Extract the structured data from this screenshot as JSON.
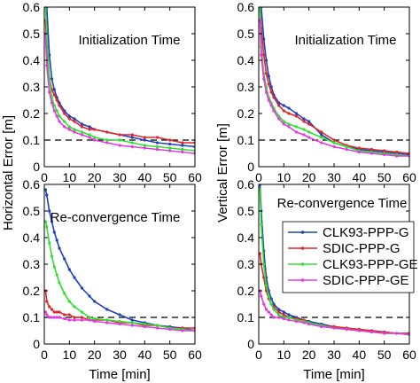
{
  "chart_data": [
    {
      "type": "line",
      "xlabel": "",
      "ylabel": "Horizontal Error [m]",
      "annotation": "Initialization Time",
      "xlim": [
        0,
        60
      ],
      "ylim": [
        0,
        0.6
      ],
      "xticks": [
        "0",
        "10",
        "20",
        "30",
        "40",
        "50",
        "60"
      ],
      "yticks": [
        "0",
        "0.1",
        "0.2",
        "0.3",
        "0.4",
        "0.5",
        "0.6"
      ],
      "reference_line": 0.1,
      "x": [
        0.5,
        1,
        2,
        3,
        4,
        5,
        6,
        8,
        10,
        12,
        15,
        18,
        20,
        25,
        30,
        35,
        40,
        45,
        50,
        55,
        60
      ],
      "series": [
        {
          "name": "CLK93-PPP-G",
          "values": [
            0.6,
            0.6,
            0.42,
            0.33,
            0.29,
            0.26,
            0.24,
            0.21,
            0.19,
            0.18,
            0.16,
            0.15,
            0.14,
            0.13,
            0.12,
            0.11,
            0.1,
            0.09,
            0.085,
            0.08,
            0.075
          ]
        },
        {
          "name": "SDIC-PPP-G",
          "values": [
            0.55,
            0.45,
            0.33,
            0.29,
            0.27,
            0.25,
            0.23,
            0.2,
            0.18,
            0.17,
            0.15,
            0.14,
            0.14,
            0.13,
            0.12,
            0.12,
            0.11,
            0.11,
            0.1,
            0.09,
            0.09
          ]
        },
        {
          "name": "CLK93-PPP-GE",
          "values": [
            0.6,
            0.5,
            0.33,
            0.26,
            0.23,
            0.21,
            0.19,
            0.17,
            0.15,
            0.14,
            0.13,
            0.12,
            0.11,
            0.1,
            0.1,
            0.09,
            0.08,
            0.075,
            0.07,
            0.065,
            0.06
          ]
        },
        {
          "name": "SDIC-PPP-GE",
          "values": [
            0.5,
            0.38,
            0.28,
            0.24,
            0.21,
            0.19,
            0.17,
            0.15,
            0.14,
            0.13,
            0.12,
            0.11,
            0.1,
            0.09,
            0.08,
            0.075,
            0.07,
            0.065,
            0.06,
            0.055,
            0.05
          ]
        }
      ]
    },
    {
      "type": "line",
      "xlabel": "",
      "ylabel": "Vertical Error [m]",
      "annotation": "Initialization Time",
      "xlim": [
        0,
        60
      ],
      "ylim": [
        0,
        0.6
      ],
      "xticks": [
        "0",
        "10",
        "20",
        "30",
        "40",
        "50",
        "60"
      ],
      "yticks": [
        "0",
        "0.1",
        "0.2",
        "0.3",
        "0.4",
        "0.5",
        "0.6"
      ],
      "reference_line": 0.1,
      "x": [
        0.5,
        1,
        2,
        3,
        4,
        5,
        6,
        8,
        10,
        12,
        15,
        18,
        20,
        25,
        30,
        35,
        40,
        45,
        50,
        55,
        60
      ],
      "series": [
        {
          "name": "CLK93-PPP-G",
          "values": [
            0.6,
            0.6,
            0.48,
            0.4,
            0.34,
            0.3,
            0.27,
            0.24,
            0.23,
            0.22,
            0.2,
            0.18,
            0.17,
            0.12,
            0.09,
            0.075,
            0.065,
            0.06,
            0.055,
            0.05,
            0.045
          ]
        },
        {
          "name": "SDIC-PPP-G",
          "values": [
            0.6,
            0.52,
            0.42,
            0.35,
            0.31,
            0.28,
            0.26,
            0.23,
            0.21,
            0.2,
            0.19,
            0.17,
            0.16,
            0.13,
            0.1,
            0.08,
            0.07,
            0.065,
            0.06,
            0.055,
            0.05
          ]
        },
        {
          "name": "CLK93-PPP-GE",
          "values": [
            0.6,
            0.45,
            0.35,
            0.3,
            0.26,
            0.24,
            0.22,
            0.19,
            0.17,
            0.16,
            0.15,
            0.14,
            0.13,
            0.11,
            0.09,
            0.075,
            0.06,
            0.055,
            0.05,
            0.045,
            0.04
          ]
        },
        {
          "name": "SDIC-PPP-GE",
          "values": [
            0.55,
            0.42,
            0.33,
            0.28,
            0.25,
            0.23,
            0.21,
            0.18,
            0.16,
            0.15,
            0.13,
            0.12,
            0.11,
            0.09,
            0.075,
            0.065,
            0.055,
            0.05,
            0.045,
            0.04,
            0.04
          ]
        }
      ]
    },
    {
      "type": "line",
      "xlabel": "Time [min]",
      "ylabel": "Horizontal Error [m]",
      "annotation": "Re-convergence Time",
      "xlim": [
        0,
        60
      ],
      "ylim": [
        0,
        0.6
      ],
      "xticks": [
        "0",
        "10",
        "20",
        "30",
        "40",
        "50",
        "60"
      ],
      "yticks": [
        "0",
        "0.1",
        "0.2",
        "0.3",
        "0.4",
        "0.5",
        "0.6"
      ],
      "reference_line": 0.1,
      "x": [
        0.5,
        1,
        2,
        3,
        4,
        5,
        6,
        8,
        10,
        12,
        15,
        18,
        20,
        25,
        30,
        35,
        40,
        45,
        50,
        55,
        60
      ],
      "series": [
        {
          "name": "CLK93-PPP-G",
          "values": [
            0.58,
            0.56,
            0.5,
            0.46,
            0.42,
            0.39,
            0.36,
            0.32,
            0.28,
            0.25,
            0.21,
            0.18,
            0.16,
            0.13,
            0.11,
            0.09,
            0.08,
            0.07,
            0.065,
            0.06,
            0.05
          ]
        },
        {
          "name": "SDIC-PPP-G",
          "values": [
            0.2,
            0.16,
            0.14,
            0.13,
            0.12,
            0.12,
            0.12,
            0.11,
            0.11,
            0.1,
            0.1,
            0.09,
            0.09,
            0.09,
            0.08,
            0.08,
            0.07,
            0.07,
            0.06,
            0.06,
            0.06
          ]
        },
        {
          "name": "CLK93-PPP-GE",
          "values": [
            0.46,
            0.44,
            0.38,
            0.33,
            0.29,
            0.26,
            0.23,
            0.19,
            0.16,
            0.14,
            0.12,
            0.1,
            0.095,
            0.09,
            0.085,
            0.08,
            0.075,
            0.07,
            0.06,
            0.055,
            0.05
          ]
        },
        {
          "name": "SDIC-PPP-GE",
          "values": [
            0.12,
            0.11,
            0.1,
            0.1,
            0.1,
            0.1,
            0.1,
            0.095,
            0.09,
            0.09,
            0.09,
            0.09,
            0.085,
            0.08,
            0.075,
            0.07,
            0.065,
            0.06,
            0.055,
            0.05,
            0.05
          ]
        }
      ]
    },
    {
      "type": "line",
      "xlabel": "Time [min]",
      "ylabel": "Vertical Error [m]",
      "annotation": "Re-convergence Time",
      "xlim": [
        0,
        60
      ],
      "ylim": [
        0,
        0.6
      ],
      "xticks": [
        "0",
        "10",
        "20",
        "30",
        "40",
        "50",
        "60"
      ],
      "yticks": [
        "0",
        "0.1",
        "0.2",
        "0.3",
        "0.4",
        "0.5",
        "0.6"
      ],
      "reference_line": 0.1,
      "legend": {
        "placement": "top-right",
        "entries": [
          "CLK93-PPP-G",
          "SDIC-PPP-G",
          "CLK93-PPP-GE",
          "SDIC-PPP-GE"
        ]
      },
      "x": [
        0.5,
        1,
        2,
        3,
        4,
        5,
        6,
        8,
        10,
        12,
        15,
        18,
        20,
        25,
        30,
        35,
        40,
        45,
        50,
        55,
        60
      ],
      "series": [
        {
          "name": "CLK93-PPP-G",
          "values": [
            0.6,
            0.5,
            0.35,
            0.25,
            0.2,
            0.17,
            0.15,
            0.13,
            0.12,
            0.11,
            0.1,
            0.09,
            0.085,
            0.075,
            0.065,
            0.06,
            0.055,
            0.05,
            0.045,
            0.04,
            0.04
          ]
        },
        {
          "name": "SDIC-PPP-G",
          "values": [
            0.34,
            0.3,
            0.25,
            0.2,
            0.17,
            0.15,
            0.14,
            0.12,
            0.11,
            0.1,
            0.095,
            0.09,
            0.08,
            0.07,
            0.065,
            0.06,
            0.055,
            0.05,
            0.045,
            0.04,
            0.04
          ]
        },
        {
          "name": "CLK93-PPP-GE",
          "values": [
            0.58,
            0.45,
            0.3,
            0.22,
            0.18,
            0.15,
            0.13,
            0.11,
            0.1,
            0.1,
            0.09,
            0.085,
            0.08,
            0.07,
            0.06,
            0.055,
            0.05,
            0.045,
            0.04,
            0.04,
            0.035
          ]
        },
        {
          "name": "SDIC-PPP-GE",
          "values": [
            0.2,
            0.18,
            0.15,
            0.13,
            0.12,
            0.11,
            0.1,
            0.1,
            0.095,
            0.09,
            0.085,
            0.08,
            0.075,
            0.065,
            0.06,
            0.055,
            0.05,
            0.045,
            0.04,
            0.04,
            0.035
          ]
        }
      ]
    }
  ],
  "series_colors": {
    "CLK93-PPP-G": "#1f3fbf",
    "SDIC-PPP-G": "#e0262b",
    "CLK93-PPP-GE": "#2fe02f",
    "SDIC-PPP-GE": "#e23be0"
  }
}
